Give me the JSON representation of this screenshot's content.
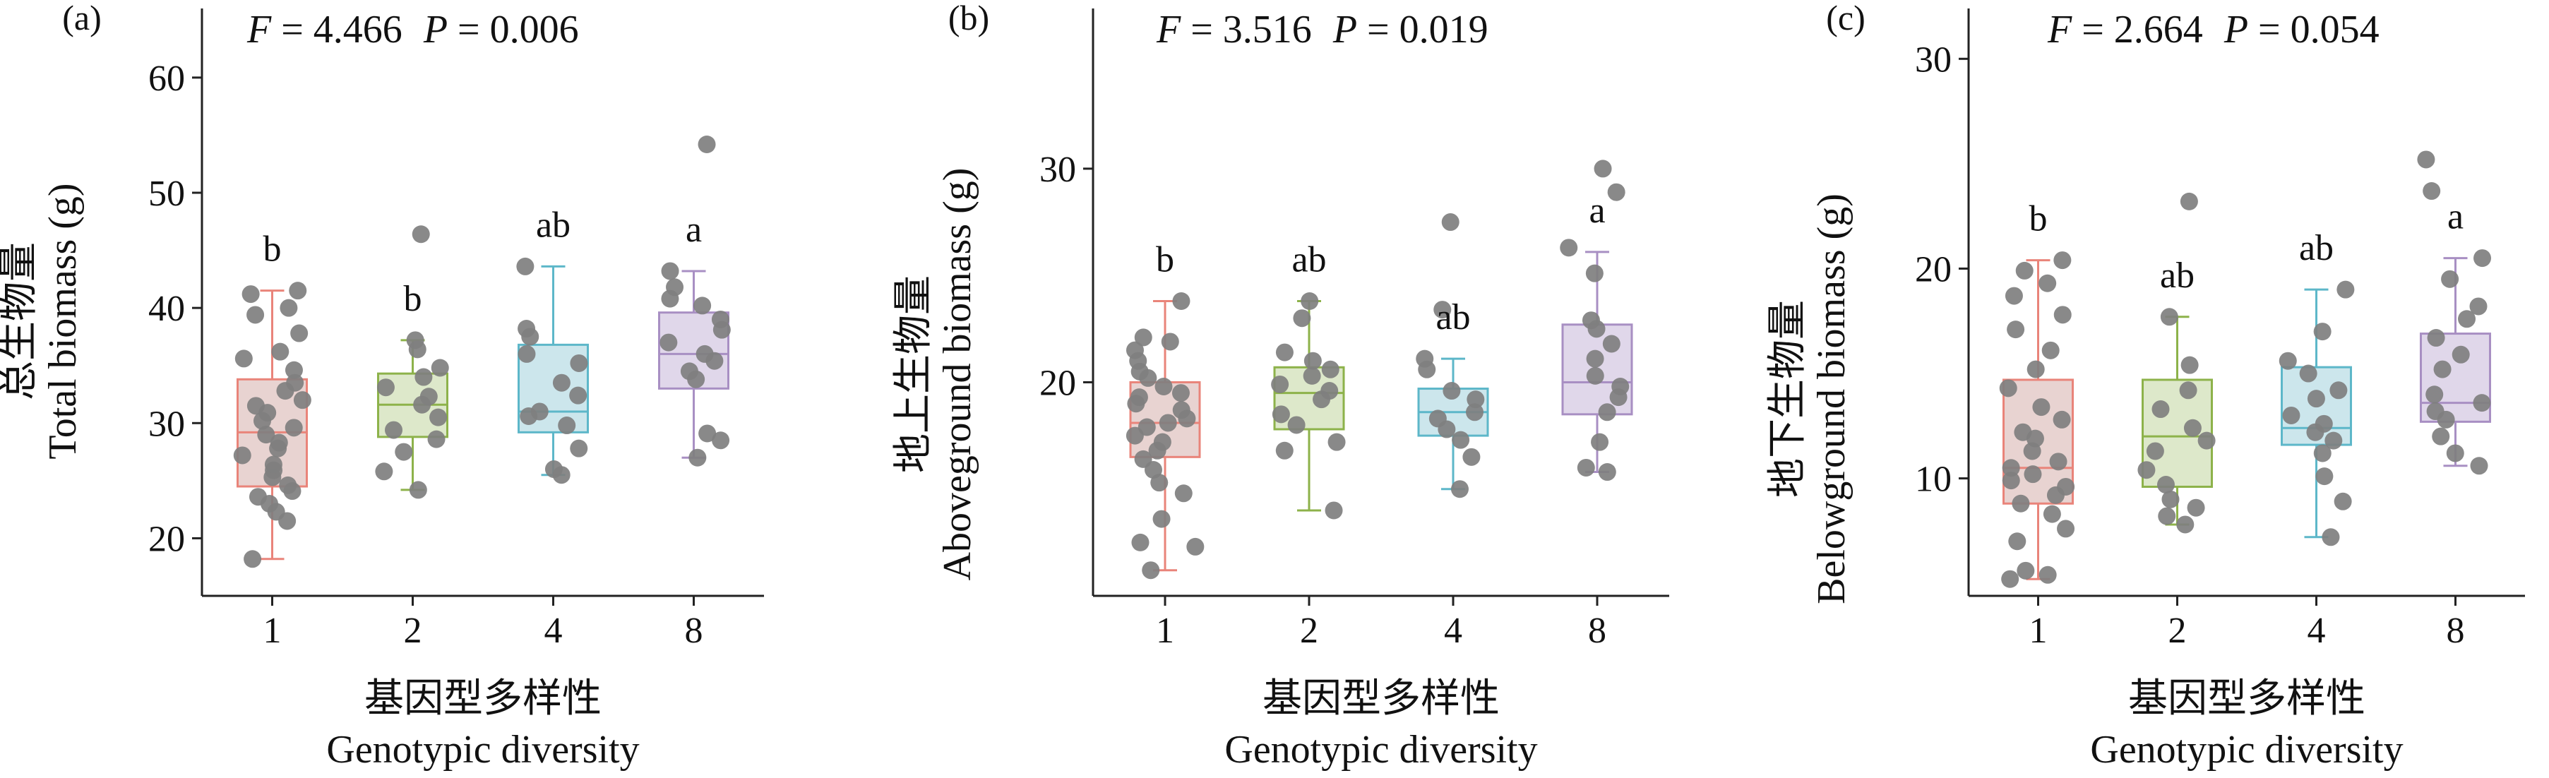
{
  "chart_data": [
    {
      "type": "box",
      "panel_label": "(a)",
      "stat_text": {
        "F": "F",
        "F_value": " = 4.466",
        "P": "P",
        "P_value": " = 0.006"
      },
      "ylabel_cn": "总生物量",
      "ylabel_en": "Total biomass (g)",
      "xlabel_cn": "基因型多样性",
      "xlabel_en": "Genotypic diversity",
      "ylim": [
        15,
        66
      ],
      "yticks": [
        20,
        30,
        40,
        50,
        60
      ],
      "categories": [
        "1",
        "2",
        "4",
        "8"
      ],
      "colors": [
        "#e9847a",
        "#8db24a",
        "#5db7c9",
        "#a88fc3"
      ],
      "fills": [
        "#e8d3d1",
        "#dde8ca",
        "#cce6ec",
        "#e0d7ea"
      ],
      "letters": [
        "b",
        "b",
        "ab",
        "a"
      ],
      "boxes": [
        {
          "whisker_low": 18.2,
          "q1": 24.5,
          "median": 29.2,
          "q3": 33.8,
          "whisker_high": 41.5
        },
        {
          "whisker_low": 24.2,
          "q1": 28.8,
          "median": 31.6,
          "q3": 34.3,
          "whisker_high": 37.2
        },
        {
          "whisker_low": 25.5,
          "q1": 29.2,
          "median": 31.0,
          "q3": 36.8,
          "whisker_high": 43.6
        },
        {
          "whisker_low": 27.0,
          "q1": 33.0,
          "median": 36.0,
          "q3": 39.6,
          "whisker_high": 43.2
        }
      ],
      "points": [
        [
          18.2,
          21.5,
          22.3,
          23.0,
          23.6,
          24.1,
          24.6,
          25.3,
          25.9,
          26.4,
          27.2,
          27.8,
          28.3,
          29.0,
          29.6,
          30.2,
          30.9,
          31.5,
          32.0,
          32.8,
          33.5,
          34.6,
          35.6,
          36.2,
          37.8,
          39.4,
          40.0,
          41.2,
          41.5
        ],
        [
          24.2,
          25.8,
          27.5,
          28.6,
          29.4,
          30.5,
          31.6,
          32.3,
          33.1,
          34.0,
          34.8,
          36.4,
          37.2,
          46.4
        ],
        [
          25.5,
          26.0,
          27.8,
          29.8,
          30.6,
          31.0,
          32.4,
          33.5,
          35.2,
          36.0,
          37.5,
          38.2,
          43.6
        ],
        [
          27.0,
          28.5,
          29.1,
          33.8,
          34.5,
          35.4,
          36.0,
          37.0,
          38.1,
          39.0,
          40.2,
          40.8,
          41.8,
          43.2,
          54.2
        ]
      ]
    },
    {
      "type": "box",
      "panel_label": "(b)",
      "stat_text": {
        "F": "F",
        "F_value": " = 3.516",
        "P": "P",
        "P_value": " = 0.019"
      },
      "ylabel_cn": "地上生物量",
      "ylabel_en": "Aboveground biomass (g)",
      "xlabel_cn": "基因型多样性",
      "xlabel_en": "Genotypic diversity",
      "ylim": [
        10,
        37.5
      ],
      "yticks": [
        20,
        30
      ],
      "categories": [
        "1",
        "2",
        "4",
        "8"
      ],
      "colors": [
        "#e9847a",
        "#8db24a",
        "#5db7c9",
        "#a88fc3"
      ],
      "fills": [
        "#e8d3d1",
        "#dde8ca",
        "#cce6ec",
        "#e0d7ea"
      ],
      "letters": [
        "b",
        "ab",
        "ab",
        "a"
      ],
      "boxes": [
        {
          "whisker_low": 11.2,
          "q1": 16.5,
          "median": 18.1,
          "q3": 20.0,
          "whisker_high": 23.8
        },
        {
          "whisker_low": 14.0,
          "q1": 17.8,
          "median": 19.5,
          "q3": 20.7,
          "whisker_high": 23.8
        },
        {
          "whisker_low": 15.0,
          "q1": 17.5,
          "median": 18.6,
          "q3": 19.7,
          "whisker_high": 21.1
        },
        {
          "whisker_low": 15.8,
          "q1": 18.5,
          "median": 20.0,
          "q3": 22.7,
          "whisker_high": 26.1
        }
      ],
      "points": [
        [
          11.2,
          12.3,
          12.5,
          13.6,
          14.8,
          15.3,
          15.9,
          16.4,
          16.8,
          17.2,
          17.5,
          17.9,
          18.1,
          18.3,
          18.7,
          19.0,
          19.3,
          19.5,
          19.8,
          20.2,
          20.5,
          21.0,
          21.5,
          21.9,
          22.1,
          23.8
        ],
        [
          14.0,
          16.8,
          17.2,
          18.0,
          18.5,
          19.2,
          19.6,
          19.9,
          20.3,
          20.6,
          21.0,
          21.4,
          23.0,
          23.8
        ],
        [
          15.0,
          16.5,
          17.3,
          17.8,
          18.3,
          18.6,
          19.2,
          19.6,
          20.6,
          21.1,
          23.4,
          27.5
        ],
        [
          15.8,
          16.0,
          17.2,
          18.6,
          19.3,
          19.8,
          20.3,
          21.1,
          21.8,
          22.5,
          22.9,
          25.1,
          26.3,
          28.9,
          30.0
        ]
      ]
    },
    {
      "type": "box",
      "panel_label": "(c)",
      "stat_text": {
        "F": "F",
        "F_value": " = 2.664",
        "P": "P",
        "P_value": " = 0.054"
      },
      "ylabel_cn": "地下生物量",
      "ylabel_en": "Belowground biomass (g)",
      "xlabel_cn": "基因型多样性",
      "xlabel_en": "Genotypic diversity",
      "ylim": [
        4.4,
        32.4
      ],
      "yticks": [
        10,
        20,
        30
      ],
      "categories": [
        "1",
        "2",
        "4",
        "8"
      ],
      "colors": [
        "#e9847a",
        "#8db24a",
        "#5db7c9",
        "#a88fc3"
      ],
      "fills": [
        "#e8d3d1",
        "#dde8ca",
        "#cce6ec",
        "#e0d7ea"
      ],
      "letters": [
        "b",
        "ab",
        "ab",
        "a"
      ],
      "boxes": [
        {
          "whisker_low": 5.2,
          "q1": 8.8,
          "median": 10.5,
          "q3": 14.7,
          "whisker_high": 20.4
        },
        {
          "whisker_low": 7.8,
          "q1": 9.6,
          "median": 12.0,
          "q3": 14.7,
          "whisker_high": 17.7
        },
        {
          "whisker_low": 7.2,
          "q1": 11.6,
          "median": 12.4,
          "q3": 15.3,
          "whisker_high": 19.0
        },
        {
          "whisker_low": 10.6,
          "q1": 12.7,
          "median": 13.6,
          "q3": 16.9,
          "whisker_high": 20.5
        }
      ],
      "points": [
        [
          5.2,
          5.4,
          5.6,
          7.0,
          7.6,
          8.3,
          8.8,
          9.2,
          9.6,
          9.9,
          10.2,
          10.5,
          10.8,
          11.3,
          11.9,
          12.2,
          12.8,
          13.4,
          14.3,
          15.2,
          16.1,
          17.1,
          17.8,
          18.7,
          19.3,
          19.9,
          20.4
        ],
        [
          7.8,
          8.2,
          8.6,
          9.0,
          9.7,
          10.4,
          11.3,
          11.8,
          12.4,
          13.3,
          14.2,
          15.4,
          17.7,
          23.2
        ],
        [
          7.2,
          8.9,
          10.1,
          11.2,
          11.8,
          12.2,
          12.6,
          13.0,
          13.8,
          14.2,
          15.0,
          15.6,
          17.0,
          19.0
        ],
        [
          10.6,
          11.2,
          12.0,
          12.8,
          13.2,
          13.6,
          14.0,
          15.2,
          15.9,
          16.7,
          17.6,
          18.2,
          19.5,
          20.5,
          23.7,
          25.2
        ]
      ]
    }
  ]
}
